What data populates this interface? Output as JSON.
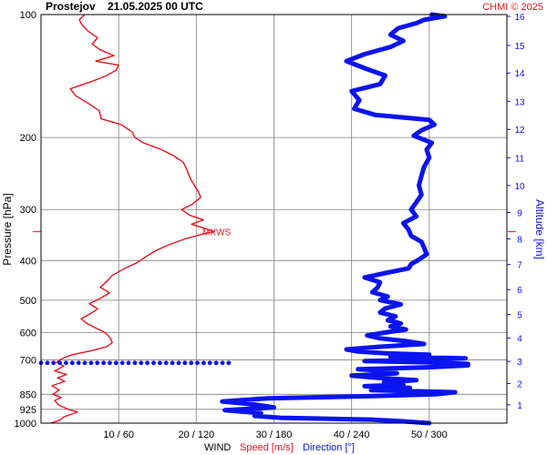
{
  "header": {
    "station": "Prostejov",
    "datetime": "21.05.2025 00 UTC",
    "credit": "CHMI © 2025"
  },
  "colors": {
    "speed": "#e8141e",
    "direction": "#0b14f0",
    "grid": "#808080",
    "text": "#000000"
  },
  "chart_data": {
    "type": "line",
    "y_axis_left": {
      "label": "Pressure [hPa]",
      "scale": "log",
      "range": [
        1000,
        100
      ],
      "ticks": [
        100,
        200,
        300,
        400,
        500,
        600,
        700,
        850,
        925,
        1000
      ]
    },
    "y_axis_right": {
      "label": "Altitude [km]",
      "ticks": [
        1,
        2,
        3,
        4,
        5,
        6,
        7,
        8,
        9,
        10,
        11,
        12,
        13,
        14,
        15,
        16
      ],
      "ticks_pressure_hPa": [
        902,
        800,
        706,
        619,
        542,
        471,
        409,
        354,
        305,
        262,
        224,
        191,
        163,
        139,
        119,
        101
      ]
    },
    "x_axis": {
      "title": "WIND",
      "speed_label": "Speed [m/s]",
      "direction_label": "Direction [°]",
      "speed_range": [
        0,
        30
      ],
      "direction_range": [
        0,
        360
      ],
      "tick_speed": [
        10,
        20,
        30,
        40,
        50
      ],
      "tick_direction": [
        60,
        120,
        180,
        240,
        300
      ],
      "tick_labels": [
        "10 / 60",
        "20 / 120",
        "30 / 180",
        "40 / 240",
        "50 / 300"
      ]
    },
    "annotation": {
      "text": "MXWS",
      "pressure": 340
    },
    "grid": true,
    "series": [
      {
        "name": "Speed [m/s]",
        "unit": "m/s",
        "points": [
          [
            1000,
            1.0
          ],
          [
            985,
            2.0
          ],
          [
            965,
            2.5
          ],
          [
            940,
            4.0
          ],
          [
            925,
            3.0
          ],
          [
            905,
            2.0
          ],
          [
            880,
            1.5
          ],
          [
            865,
            2.2
          ],
          [
            850,
            1.3
          ],
          [
            830,
            2.0
          ],
          [
            810,
            1.2
          ],
          [
            790,
            2.6
          ],
          [
            775,
            1.8
          ],
          [
            760,
            2.8
          ],
          [
            745,
            1.5
          ],
          [
            725,
            2.5
          ],
          [
            710,
            1.7
          ],
          [
            695,
            2.3
          ],
          [
            680,
            3.4
          ],
          [
            665,
            5.5
          ],
          [
            650,
            7.2
          ],
          [
            635,
            7.8
          ],
          [
            615,
            7.5
          ],
          [
            600,
            7.0
          ],
          [
            585,
            6.0
          ],
          [
            570,
            5.0
          ],
          [
            555,
            4.4
          ],
          [
            540,
            5.4
          ],
          [
            525,
            6.2
          ],
          [
            510,
            5.3
          ],
          [
            495,
            6.5
          ],
          [
            480,
            7.5
          ],
          [
            465,
            6.5
          ],
          [
            450,
            7.2
          ],
          [
            435,
            7.8
          ],
          [
            420,
            9.0
          ],
          [
            405,
            10.5
          ],
          [
            390,
            11.6
          ],
          [
            378,
            12.6
          ],
          [
            366,
            14.0
          ],
          [
            354,
            15.8
          ],
          [
            344,
            17.8
          ],
          [
            340,
            19.0
          ],
          [
            334,
            18.0
          ],
          [
            326,
            16.5
          ],
          [
            318,
            17.8
          ],
          [
            310,
            16.3
          ],
          [
            300,
            15.4
          ],
          [
            292,
            16.5
          ],
          [
            280,
            17.5
          ],
          [
            270,
            17.2
          ],
          [
            262,
            16.8
          ],
          [
            250,
            16.3
          ],
          [
            240,
            16.0
          ],
          [
            230,
            15.6
          ],
          [
            222,
            14.6
          ],
          [
            214,
            13.2
          ],
          [
            206,
            11.2
          ],
          [
            200,
            10.3
          ],
          [
            194,
            10.0
          ],
          [
            186,
            8.8
          ],
          [
            180,
            6.6
          ],
          [
            172,
            6.4
          ],
          [
            165,
            5.2
          ],
          [
            158,
            3.8
          ],
          [
            152,
            3.2
          ],
          [
            146,
            5.5
          ],
          [
            141,
            7.2
          ],
          [
            137,
            8.2
          ],
          [
            133,
            8.5
          ],
          [
            130,
            6.0
          ],
          [
            126,
            8.0
          ],
          [
            122,
            6.5
          ],
          [
            118,
            5.6
          ],
          [
            114,
            6.2
          ],
          [
            110,
            5.2
          ],
          [
            106,
            4.5
          ],
          [
            103,
            4.2
          ],
          [
            100,
            4.8
          ]
        ]
      },
      {
        "name": "Direction [°]",
        "unit": "deg",
        "points": [
          [
            1000,
            300
          ],
          [
            990,
            280
          ],
          [
            980,
            255
          ],
          [
            970,
            185
          ],
          [
            960,
            165
          ],
          [
            945,
            170
          ],
          [
            930,
            142
          ],
          [
            915,
            180
          ],
          [
            900,
            165
          ],
          [
            885,
            140
          ],
          [
            870,
            175
          ],
          [
            858,
            260
          ],
          [
            850,
            305
          ],
          [
            840,
            320
          ],
          [
            830,
            255
          ],
          [
            820,
            285
          ],
          [
            812,
            250
          ],
          [
            805,
            280
          ],
          [
            795,
            265
          ],
          [
            785,
            290
          ],
          [
            775,
            260
          ],
          [
            765,
            240
          ],
          [
            755,
            275
          ],
          [
            745,
            270
          ],
          [
            738,
            245
          ],
          [
            730,
            300
          ],
          [
            722,
            330
          ],
          [
            716,
            330
          ],
          [
            710,
            300
          ],
          [
            705,
            250
          ],
          [
            700,
            300
          ],
          [
            694,
            328
          ],
          [
            688,
            270
          ],
          [
            680,
            300
          ],
          [
            675,
            268
          ],
          [
            668,
            245
          ],
          [
            660,
            236
          ],
          [
            650,
            262
          ],
          [
            640,
            296
          ],
          [
            630,
            282
          ],
          [
            620,
            262
          ],
          [
            610,
            252
          ],
          [
            600,
            266
          ],
          [
            590,
            282
          ],
          [
            580,
            270
          ],
          [
            570,
            278
          ],
          [
            560,
            268
          ],
          [
            548,
            274
          ],
          [
            536,
            262
          ],
          [
            524,
            266
          ],
          [
            512,
            278
          ],
          [
            500,
            262
          ],
          [
            490,
            268
          ],
          [
            478,
            256
          ],
          [
            466,
            260
          ],
          [
            452,
            262
          ],
          [
            440,
            250
          ],
          [
            428,
            268
          ],
          [
            418,
            284
          ],
          [
            408,
            286
          ],
          [
            398,
            292
          ],
          [
            386,
            298
          ],
          [
            372,
            296
          ],
          [
            360,
            294
          ],
          [
            348,
            286
          ],
          [
            336,
            284
          ],
          [
            324,
            280
          ],
          [
            312,
            290
          ],
          [
            300,
            286
          ],
          [
            288,
            290
          ],
          [
            276,
            294
          ],
          [
            262,
            292
          ],
          [
            248,
            294
          ],
          [
            236,
            296
          ],
          [
            224,
            300
          ],
          [
            214,
            298
          ],
          [
            206,
            302
          ],
          [
            198,
            288
          ],
          [
            192,
            294
          ],
          [
            186,
            304
          ],
          [
            181,
            300
          ],
          [
            176,
            258
          ],
          [
            170,
            242
          ],
          [
            162,
            246
          ],
          [
            154,
            240
          ],
          [
            148,
            262
          ],
          [
            141,
            266
          ],
          [
            136,
            252
          ],
          [
            130,
            236
          ],
          [
            125,
            250
          ],
          [
            120,
            270
          ],
          [
            116,
            280
          ],
          [
            112,
            270
          ],
          [
            108,
            276
          ],
          [
            105,
            290
          ],
          [
            103,
            296
          ],
          [
            101,
            312
          ],
          [
            100,
            302
          ]
        ]
      },
      {
        "name": "Direction (dotted)",
        "unit": "deg",
        "style": "dots",
        "points": [
          [
            712,
            0
          ],
          [
            712,
            30
          ],
          [
            712,
            60
          ],
          [
            712,
            90
          ],
          [
            712,
            120
          ],
          [
            712,
            145
          ]
        ]
      }
    ]
  }
}
